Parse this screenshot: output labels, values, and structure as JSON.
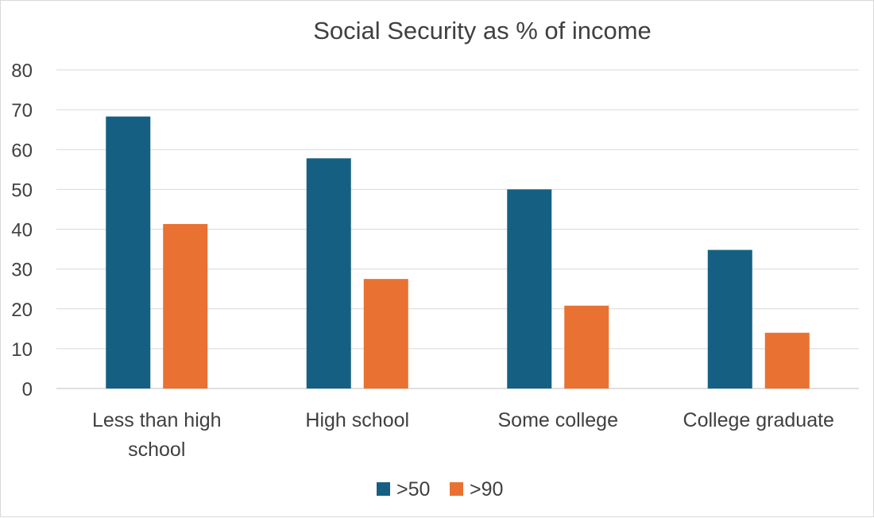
{
  "chart_data": {
    "type": "bar",
    "title": "Social Security as % of income",
    "xlabel": "",
    "ylabel": "",
    "ylim": [
      0,
      80
    ],
    "yticks": [
      0,
      10,
      20,
      30,
      40,
      50,
      60,
      70,
      80
    ],
    "grid": true,
    "legend_position": "bottom",
    "categories": [
      [
        "Less than high",
        "school"
      ],
      [
        "High school"
      ],
      [
        "Some college"
      ],
      [
        "College graduate"
      ]
    ],
    "series": [
      {
        "name": ">50",
        "color": "#156082",
        "values": [
          68.3,
          57.8,
          50.0,
          34.8
        ]
      },
      {
        "name": ">90",
        "color": "#E97132",
        "values": [
          41.3,
          27.5,
          20.8,
          14.0
        ]
      }
    ]
  }
}
